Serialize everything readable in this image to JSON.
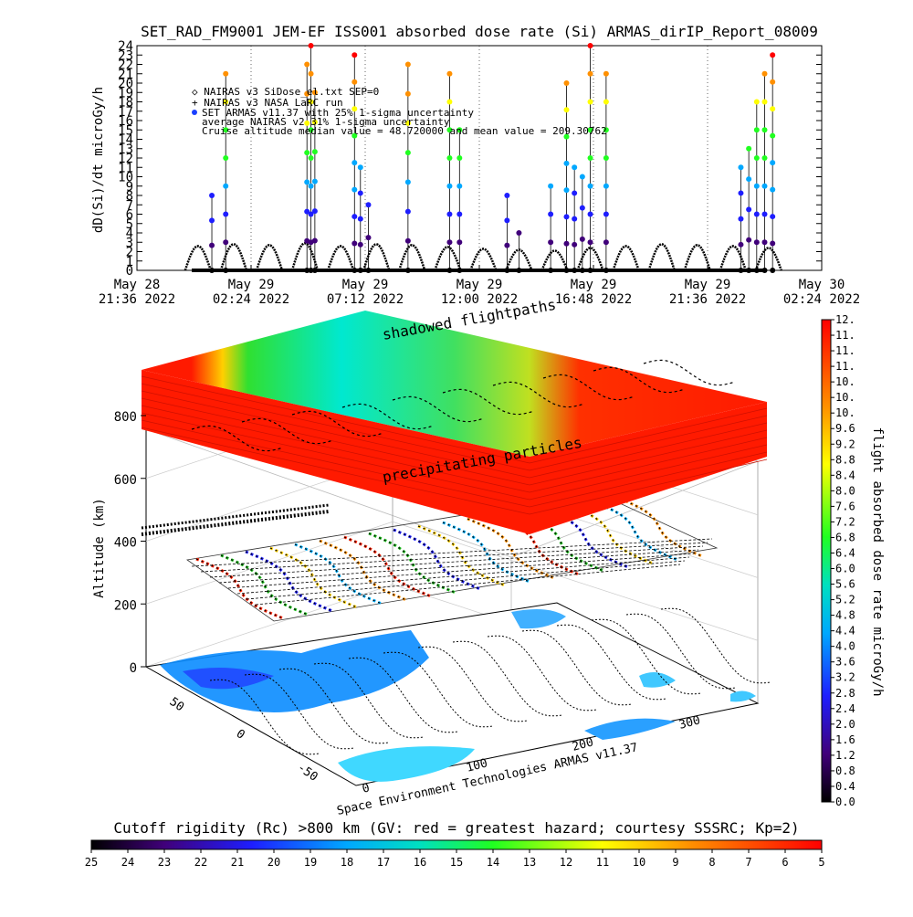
{
  "title": "SET_RAD_FM9001  JEM-EF ISS001 absorbed dose rate (Si) ARMAS_dirIP_Report_08009",
  "top_chart": {
    "ylabel": "dD(Si)/dt microGy/h",
    "y_ticks": [
      "0",
      "1",
      "2",
      "3",
      "4",
      "5",
      "6",
      "7",
      "8",
      "9",
      "10",
      "11",
      "12",
      "13",
      "14",
      "15",
      "16",
      "17",
      "18",
      "19",
      "20",
      "21",
      "22",
      "23",
      "24"
    ],
    "x_ticks": [
      {
        "line1": "May 28",
        "line2": "21:36 2022"
      },
      {
        "line1": "May 29",
        "line2": "02:24 2022"
      },
      {
        "line1": "May 29",
        "line2": "07:12 2022"
      },
      {
        "line1": "May 29",
        "line2": "12:00 2022"
      },
      {
        "line1": "May 29",
        "line2": "16:48 2022"
      },
      {
        "line1": "May 29",
        "line2": "21:36 2022"
      },
      {
        "line1": "May 30",
        "line2": "02:24 2022"
      }
    ],
    "legend": [
      "◇ NAIRAS v3 SiDose_el.txt SEP=0",
      "+ NAIRAS v3 NASA LaRC run",
      "SET ARMAS v11.37 with 25% 1-sigma uncertainty",
      "average NAIRAS v2 31% 1-sigma uncertainty",
      "Cruise altitude median value = 48.720000 and mean value = 209.30762"
    ]
  },
  "chart_data": [
    {
      "type": "scatter",
      "title": "SET_RAD_FM9001  JEM-EF ISS001 absorbed dose rate (Si) ARMAS_dirIP_Report_08009",
      "ylabel": "dD(Si)/dt microGy/h",
      "xlabel": "",
      "ylim": [
        0,
        24
      ],
      "xlim": [
        "May 28 21:36 2022",
        "May 30 02:24 2022"
      ],
      "grid": true,
      "series": [
        {
          "name": "NAIRAS v3 SiDose_el.txt SEP=0",
          "x": [
            "May 29 00:10",
            "May 29 01:40",
            "May 29 03:10",
            "May 29 04:40",
            "May 29 06:10",
            "May 29 07:40",
            "May 29 09:10",
            "May 29 10:40",
            "May 29 12:10",
            "May 29 13:40",
            "May 29 15:10",
            "May 29 16:40",
            "May 29 18:10",
            "May 29 19:40",
            "May 29 21:10",
            "May 29 22:40",
            "May 30 00:10"
          ],
          "values": [
            2.6,
            2.8,
            2.7,
            2.9,
            2.6,
            2.8,
            2.7,
            2.5,
            2.3,
            2.2,
            2.1,
            2.4,
            2.6,
            2.8,
            2.7,
            2.6,
            2.4
          ]
        },
        {
          "name": "SET ARMAS v11.37 with 25% 1-sigma uncertainty",
          "x": [
            "May 29 00:45",
            "May 29 01:20",
            "May 29 04:45",
            "May 29 04:55",
            "May 29 05:05",
            "May 29 06:45",
            "May 29 07:00",
            "May 29 07:20",
            "May 29 09:00",
            "May 29 10:45",
            "May 29 11:10",
            "May 29 13:10",
            "May 29 13:40",
            "May 29 15:00",
            "May 29 15:40",
            "May 29 16:00",
            "May 29 16:20",
            "May 29 16:40",
            "May 29 17:20",
            "May 29 23:00",
            "May 29 23:20",
            "May 29 23:40",
            "May 30 00:00",
            "May 30 00:20"
          ],
          "values": [
            8,
            21,
            22,
            24,
            19,
            23,
            11,
            7,
            22,
            21,
            15,
            8,
            4,
            9,
            20,
            11,
            10,
            24,
            21,
            11,
            13,
            18,
            21,
            23
          ]
        }
      ]
    },
    {
      "type": "scatter",
      "title": "",
      "ylabel": "Altitude (km)",
      "zlim": [
        0,
        800
      ],
      "z_ticks": [
        0,
        200,
        400,
        600,
        800
      ],
      "lat_ticks": [
        50,
        0,
        -50
      ],
      "lon_ticks": [
        0,
        100,
        200,
        300
      ],
      "colorbar_label": "flight absorbed dose rate microGy/h",
      "colorbar_ticks": [
        "0.0",
        "0.4",
        "0.8",
        "1.2",
        "1.6",
        "2.0",
        "2.4",
        "2.8",
        "3.2",
        "3.6",
        "4.0",
        "4.4",
        "4.8",
        "5.2",
        "5.6",
        "6.0",
        "6.4",
        "6.8",
        "7.2",
        "7.6",
        "8.0",
        "8.4",
        "8.8",
        "9.2",
        "9.6",
        "10.",
        "10.",
        "10.",
        "11.",
        "11.",
        "11.",
        "12."
      ],
      "band_labels": [
        "shadowed flightpaths",
        "precipitating particles"
      ]
    }
  ],
  "map3d": {
    "zlabel": "Altitude (km)",
    "z_ticks": [
      "0",
      "200",
      "400",
      "600",
      "800"
    ],
    "lat_ticks": [
      "50",
      "0",
      "-50"
    ],
    "lon_ticks": [
      "0",
      "100",
      "200",
      "300"
    ],
    "band_top_label": "shadowed flightpaths",
    "band_mid_label": "precipitating particles",
    "credit": "Space Environment Technologies ARMAS v11.37"
  },
  "colorbar_right": {
    "label": "flight absorbed dose rate microGy/h",
    "ticks": [
      "0.0",
      "0.4",
      "0.8",
      "1.2",
      "1.6",
      "2.0",
      "2.4",
      "2.8",
      "3.2",
      "3.6",
      "4.0",
      "4.4",
      "4.8",
      "5.2",
      "5.6",
      "6.0",
      "6.4",
      "6.8",
      "7.2",
      "7.6",
      "8.0",
      "8.4",
      "8.8",
      "9.2",
      "9.6",
      "10.",
      "10.",
      "10.",
      "11.",
      "11.",
      "11.",
      "12."
    ]
  },
  "colorbar_bottom": {
    "title": "Cutoff rigidity (Rc) >800 km (GV: red = greatest hazard; courtesy SSSRC; Kp=2)",
    "ticks": [
      "25",
      "24",
      "23",
      "22",
      "21",
      "20",
      "19",
      "18",
      "17",
      "16",
      "15",
      "14",
      "13",
      "12",
      "11",
      "10",
      "9",
      "8",
      "7",
      "6",
      "5"
    ]
  },
  "colors": {
    "rainbow": [
      "#000000",
      "#3a0070",
      "#2020ff",
      "#00b0ff",
      "#30ff30",
      "#ffff00",
      "#ff8000",
      "#ff0000"
    ],
    "band_red": "#ff1a00",
    "ocean": "#0090ff",
    "land": "#ffffff"
  }
}
